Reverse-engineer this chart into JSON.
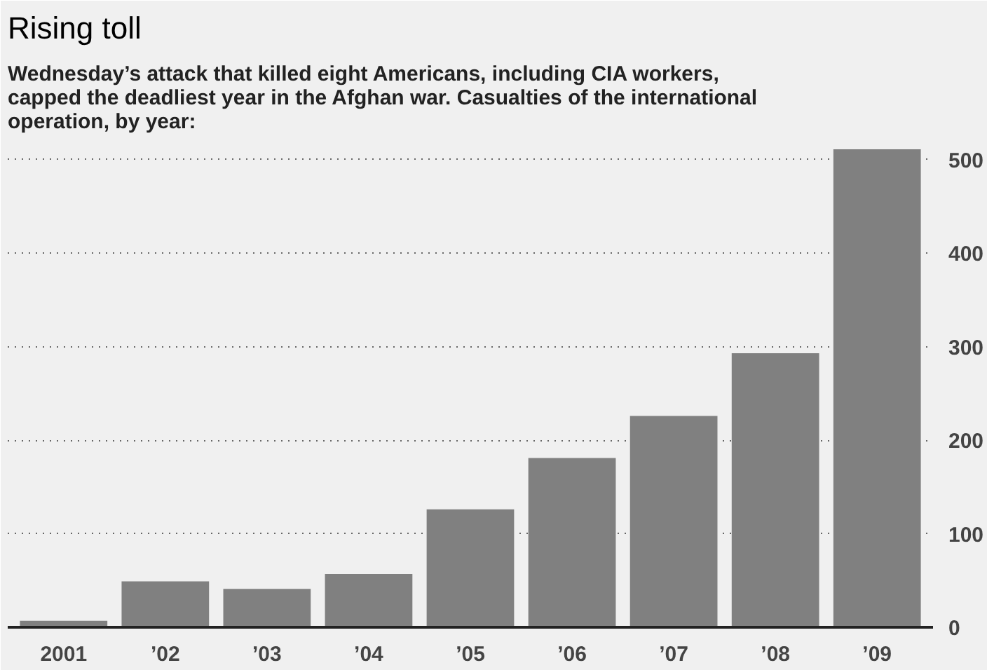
{
  "chart_data": {
    "type": "bar",
    "title": "Rising toll",
    "subtitle": "Wednesday’s attack that killed eight Americans, including CIA workers,\ncapped the deadliest year in the Afghan war. Casualties of the international\noperation, by year:",
    "categories": [
      "2001",
      "’02",
      "’03",
      "’04",
      "’05",
      "’06",
      "’07",
      "’08",
      "’09"
    ],
    "values": [
      7,
      49,
      41,
      57,
      126,
      181,
      226,
      293,
      511
    ],
    "color": "#808080",
    "ylim": [
      0,
      520
    ],
    "yticks": [
      0,
      100,
      200,
      300,
      400,
      500
    ],
    "grid": "y"
  }
}
